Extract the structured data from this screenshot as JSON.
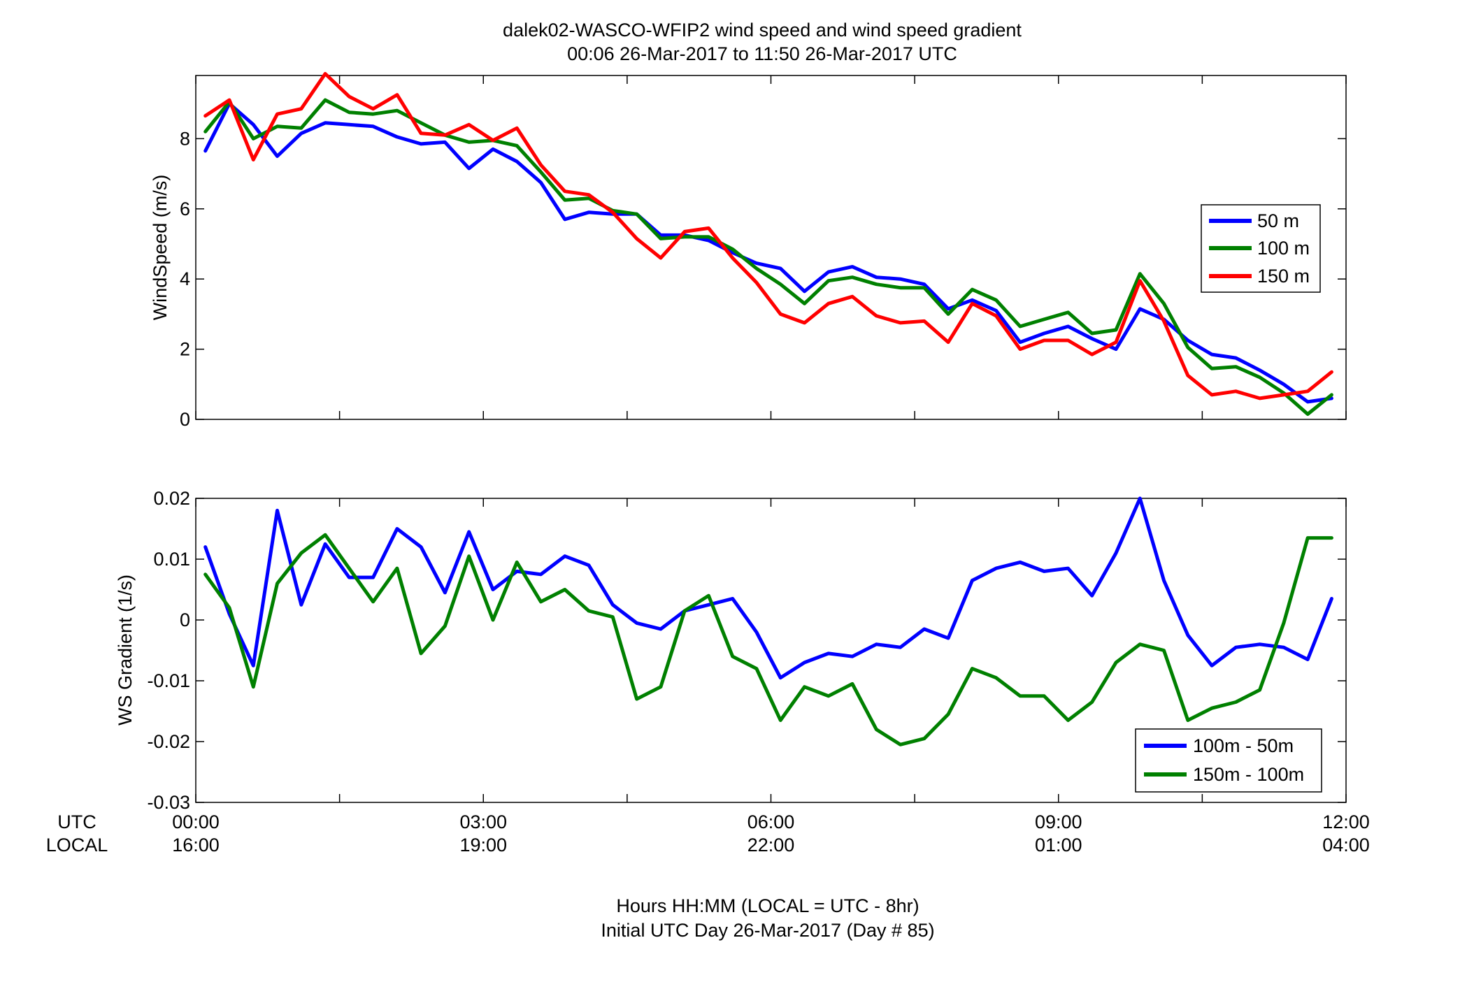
{
  "title_line1": "dalek02-WASCO-WFIP2  wind speed and wind speed gradient",
  "title_line2": "00:06 26-Mar-2017 to 11:50 26-Mar-2017  UTC",
  "xaxis": {
    "utc_label": "UTC",
    "local_label": "LOCAL",
    "utc_ticks": [
      "00:00",
      "03:00",
      "06:00",
      "09:00",
      "12:00"
    ],
    "local_ticks": [
      "16:00",
      "19:00",
      "22:00",
      "01:00",
      "04:00"
    ],
    "footer_line1": "Hours HH:MM  (LOCAL = UTC - 8hr)",
    "footer_line2": "Initial UTC Day 26-Mar-2017 (Day # 85)"
  },
  "chart_data": [
    {
      "type": "line",
      "ylabel": "WindSpeed (m/s)",
      "xlim_hours": [
        0,
        12
      ],
      "ylim": [
        0,
        9.8
      ],
      "yticks": [
        0,
        2,
        4,
        6,
        8
      ],
      "ytick_labels": [
        "0",
        "2",
        "4",
        "6",
        "8"
      ],
      "grid": false,
      "legend_position": "right",
      "x_hours": [
        0.1,
        0.35,
        0.6,
        0.85,
        1.1,
        1.35,
        1.6,
        1.85,
        2.1,
        2.35,
        2.6,
        2.85,
        3.1,
        3.35,
        3.6,
        3.85,
        4.1,
        4.35,
        4.6,
        4.85,
        5.1,
        5.35,
        5.6,
        5.85,
        6.1,
        6.35,
        6.6,
        6.85,
        7.1,
        7.35,
        7.6,
        7.85,
        8.1,
        8.35,
        8.6,
        8.85,
        9.1,
        9.35,
        9.6,
        9.85,
        10.1,
        10.35,
        10.6,
        10.85,
        11.1,
        11.35,
        11.6,
        11.85
      ],
      "series": [
        {
          "name": "50 m",
          "color": "#0000ff",
          "values": [
            7.65,
            9.0,
            8.4,
            7.5,
            8.15,
            8.45,
            8.4,
            8.35,
            8.05,
            7.85,
            7.9,
            7.15,
            7.7,
            7.35,
            6.75,
            5.7,
            5.9,
            5.85,
            5.85,
            5.25,
            5.25,
            5.1,
            4.75,
            4.45,
            4.3,
            3.65,
            4.2,
            4.35,
            4.05,
            4.0,
            3.85,
            3.15,
            3.4,
            3.1,
            2.2,
            2.45,
            2.65,
            2.3,
            2.0,
            3.15,
            2.85,
            2.25,
            1.85,
            1.75,
            1.4,
            1.0,
            0.5,
            0.6
          ]
        },
        {
          "name": "100 m",
          "color": "#008000",
          "values": [
            8.2,
            9.05,
            8.0,
            8.35,
            8.3,
            9.1,
            8.75,
            8.7,
            8.8,
            8.45,
            8.1,
            7.9,
            7.95,
            7.8,
            7.05,
            6.25,
            6.3,
            5.95,
            5.85,
            5.15,
            5.2,
            5.2,
            4.85,
            4.3,
            3.85,
            3.3,
            3.95,
            4.05,
            3.85,
            3.75,
            3.75,
            3.0,
            3.7,
            3.4,
            2.65,
            2.85,
            3.05,
            2.45,
            2.55,
            4.15,
            3.3,
            2.05,
            1.45,
            1.5,
            1.2,
            0.75,
            0.15,
            0.7
          ]
        },
        {
          "name": "150 m",
          "color": "#ff0000",
          "values": [
            8.65,
            9.1,
            7.4,
            8.7,
            8.85,
            9.85,
            9.2,
            8.85,
            9.25,
            8.15,
            8.1,
            8.4,
            7.95,
            8.3,
            7.25,
            6.5,
            6.4,
            5.9,
            5.15,
            4.6,
            5.35,
            5.45,
            4.6,
            3.9,
            3.0,
            2.75,
            3.3,
            3.5,
            2.95,
            2.75,
            2.8,
            2.2,
            3.3,
            2.95,
            2.0,
            2.25,
            2.25,
            1.85,
            2.2,
            3.95,
            2.8,
            1.25,
            0.7,
            0.8,
            0.6,
            0.7,
            0.8,
            1.35
          ]
        }
      ]
    },
    {
      "type": "line",
      "ylabel": "WS Gradient (1/s)",
      "xlim_hours": [
        0,
        12
      ],
      "ylim": [
        -0.03,
        0.02
      ],
      "yticks": [
        -0.03,
        -0.02,
        -0.01,
        0,
        0.01,
        0.02
      ],
      "ytick_labels": [
        "-0.03",
        "-0.02",
        "-0.01",
        "0",
        "0.01",
        "0.02"
      ],
      "grid": false,
      "legend_position": "bottom-right",
      "x_hours": [
        0.1,
        0.35,
        0.6,
        0.85,
        1.1,
        1.35,
        1.6,
        1.85,
        2.1,
        2.35,
        2.6,
        2.85,
        3.1,
        3.35,
        3.6,
        3.85,
        4.1,
        4.35,
        4.6,
        4.85,
        5.1,
        5.35,
        5.6,
        5.85,
        6.1,
        6.35,
        6.6,
        6.85,
        7.1,
        7.35,
        7.6,
        7.85,
        8.1,
        8.35,
        8.6,
        8.85,
        9.1,
        9.35,
        9.6,
        9.85,
        10.1,
        10.35,
        10.6,
        10.85,
        11.1,
        11.35,
        11.6,
        11.85
      ],
      "series": [
        {
          "name": "100m - 50m",
          "color": "#0000ff",
          "values": [
            0.012,
            0.001,
            -0.0075,
            0.018,
            0.0025,
            0.0125,
            0.007,
            0.007,
            0.015,
            0.012,
            0.0045,
            0.0145,
            0.005,
            0.008,
            0.0075,
            0.0105,
            0.009,
            0.0025,
            -0.0005,
            -0.0015,
            0.0015,
            0.0025,
            0.0035,
            -0.002,
            -0.0095,
            -0.007,
            -0.0055,
            -0.006,
            -0.004,
            -0.0045,
            -0.0015,
            -0.003,
            0.0065,
            0.0085,
            0.0095,
            0.008,
            0.0085,
            0.004,
            0.011,
            0.02,
            0.0065,
            -0.0025,
            -0.0075,
            -0.0045,
            -0.004,
            -0.0045,
            -0.0065,
            0.0035
          ]
        },
        {
          "name": "150m - 100m",
          "color": "#008000",
          "values": [
            0.0075,
            0.002,
            -0.011,
            0.006,
            0.011,
            0.014,
            0.0085,
            0.003,
            0.0085,
            -0.0055,
            -0.001,
            0.0105,
            0.0,
            0.0095,
            0.003,
            0.005,
            0.0015,
            0.0005,
            -0.013,
            -0.011,
            0.0015,
            0.004,
            -0.006,
            -0.008,
            -0.0165,
            -0.011,
            -0.0125,
            -0.0105,
            -0.018,
            -0.0205,
            -0.0195,
            -0.0155,
            -0.008,
            -0.0095,
            -0.0125,
            -0.0125,
            -0.0165,
            -0.0135,
            -0.007,
            -0.004,
            -0.005,
            -0.0165,
            -0.0145,
            -0.0135,
            -0.0115,
            -0.0005,
            0.0135,
            0.0135
          ]
        }
      ]
    }
  ]
}
